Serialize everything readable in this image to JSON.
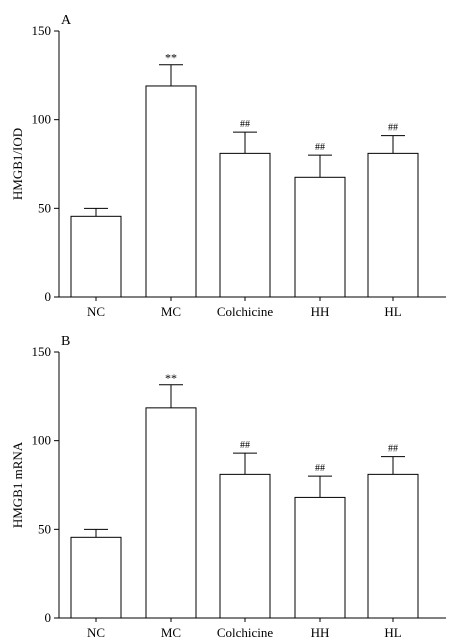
{
  "chart_data": [
    {
      "panel": "A",
      "type": "bar",
      "categories": [
        "NC",
        "MC",
        "Colchicine",
        "HH",
        "HL"
      ],
      "values": [
        45.5,
        119,
        81,
        67.5,
        81
      ],
      "errors": [
        4.5,
        12,
        12,
        12.5,
        10
      ],
      "significance": [
        "",
        "**",
        "##",
        "##",
        "##"
      ],
      "ylabel": "HMGB1/IOD",
      "yticks": [
        0,
        50,
        100,
        150
      ],
      "ylim": [
        0,
        150
      ],
      "grid": false
    },
    {
      "panel": "B",
      "type": "bar",
      "categories": [
        "NC",
        "MC",
        "Colchicine",
        "HH",
        "HL"
      ],
      "values": [
        45.5,
        118.5,
        81,
        68,
        81
      ],
      "errors": [
        4.5,
        13,
        12,
        12,
        10
      ],
      "significance": [
        "",
        "**",
        "##",
        "##",
        "##"
      ],
      "ylabel": "HMGB1 mRNA",
      "yticks": [
        0,
        50,
        100,
        150
      ],
      "ylim": [
        0,
        150
      ],
      "grid": false
    }
  ]
}
